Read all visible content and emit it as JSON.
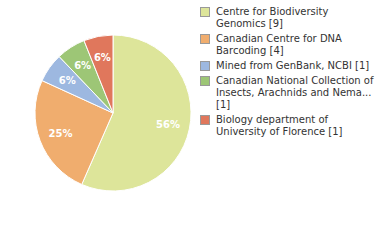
{
  "chart_data": {
    "type": "pie",
    "categories": [
      "Centre for Biodiversity Genomics [9]",
      "Canadian Centre for DNA Barcoding [4]",
      "Mined from GenBank, NCBI [1]",
      "Canadian National Collection of Insects, Arachnids and Nema... [1]",
      "Biology department of University of Florence [1]"
    ],
    "values": [
      56,
      25,
      6,
      6,
      6
    ],
    "value_labels": [
      "56%",
      "25%",
      "6%",
      "6%",
      "6%"
    ],
    "data_labels": true,
    "legend": "right",
    "colors": [
      "#dde59a",
      "#f0ad6e",
      "#9db8e0",
      "#9dc676",
      "#e0775c"
    ]
  }
}
